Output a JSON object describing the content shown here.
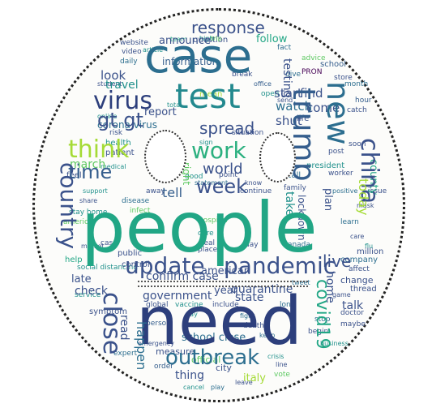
{
  "words": {
    "people": "people",
    "need": "need",
    "case": "case",
    "test": "test",
    "update": "update",
    "pandemic": "pandemic",
    "outbreak": "outbreak",
    "trump": "trump",
    "new": "new",
    "china": "china",
    "time": "time",
    "virus": "virus",
    "gt_gt": "gt gt",
    "think": "think",
    "work": "work",
    "week": "week",
    "country": "country",
    "spread": "spread",
    "close": "close",
    "response": "response",
    "government": "government",
    "confirm_case": "confirm case",
    "world": "world",
    "march": "march",
    "today": "today",
    "live": "live",
    "covid19": "covid19",
    "start": "start",
    "watch": "watch",
    "find": "find",
    "come": "come",
    "report": "report",
    "right": "right",
    "state": "state",
    "year": "year",
    "quarantine": "quarantine",
    "happen": "happen",
    "thing": "thing",
    "late": "late",
    "read": "read",
    "home": "home",
    "lockdown": "lockdown",
    "look": "look",
    "tell": "tell",
    "information": "information",
    "testing": "testing",
    "corona_virus": "corona virus",
    "travel": "travel",
    "american": "american",
    "county": "county",
    "announce": "announce",
    "follow": "follow",
    "shut": "shut",
    "take": "take",
    "help": "help",
    "check": "check",
    "school_close": "school close",
    "italy": "italy",
    "talk": "talk",
    "health": "health",
    "patient": "patient",
    "public": "public",
    "control": "control",
    "official": "official",
    "city": "city",
    "change": "change",
    "million": "million",
    "plan": "plan",
    "day": "day",
    "cure": "cure",
    "place": "place",
    "mean": "mean",
    "break": "break",
    "issue": "issue",
    "post": "post",
    "soon": "soon",
    "company": "company",
    "thread": "thread",
    "doctor": "doctor",
    "maybe": "maybe",
    "symptom": "symptom",
    "service": "service",
    "video": "video",
    "online": "online",
    "question": "question",
    "school": "school",
    "daily": "daily",
    "fact": "fact",
    "team": "team",
    "advice": "advice",
    "store": "store",
    "disease": "disease",
    "canada": "canada",
    "stay_home": "stay home",
    "america": "america",
    "worker": "worker",
    "hour": "hour",
    "catch": "catch",
    "sign": "sign",
    "feel": "feel",
    "continue": "continue",
    "learn": "learn",
    "affect": "affect",
    "hospital": "hospital",
    "business": "business",
    "pron": "PRON",
    "expert": "expert",
    "order": "order",
    "vote": "vote",
    "social_distancing": "social distancing",
    "global": "global",
    "vaccine": "vaccine",
    "include": "include",
    "long": "long",
    "family": "family",
    "event": "event",
    "month": "month",
    "president": "president",
    "infect": "infect",
    "away": "away",
    "real": "real",
    "point": "point",
    "call": "call",
    "website": "website",
    "article": "article",
    "student": "student",
    "office": "office",
    "tweet": "tweet",
    "high": "high",
    "measure": "measure",
    "person": "person",
    "begin": "begin",
    "open": "open",
    "send": "send",
    "give": "give",
    "life": "life",
    "trip": "trip",
    "risk": "risk",
    "situation": "situation",
    "case_small": "case",
    "statement": "statement",
    "medical": "medical",
    "total": "total",
    "good": "good",
    "know": "know",
    "stop": "stop",
    "say": "say",
    "death": "death",
    "fight": "fight",
    "emergency": "emergency",
    "crisis": "crisis",
    "leave": "leave",
    "play": "play",
    "event_cancel": "cancel",
    "game": "game",
    "market": "market",
    "flu": "flu",
    "mask": "mask",
    "test_positive": "positive",
    "share": "share",
    "support": "support",
    "care": "care",
    "keep": "keep",
    "line": "line"
  },
  "colors": {
    "dark_navy": "#2d3f7c",
    "navy": "#355e8d",
    "blue": "#2c6e8f",
    "teal": "#23898e",
    "green_teal": "#2bb07f",
    "green": "#21a685",
    "lime": "#a5db36",
    "light_green": "#5ec962",
    "purple": "#440154",
    "indigo": "#3b528b",
    "yellow": "#dde318"
  }
}
